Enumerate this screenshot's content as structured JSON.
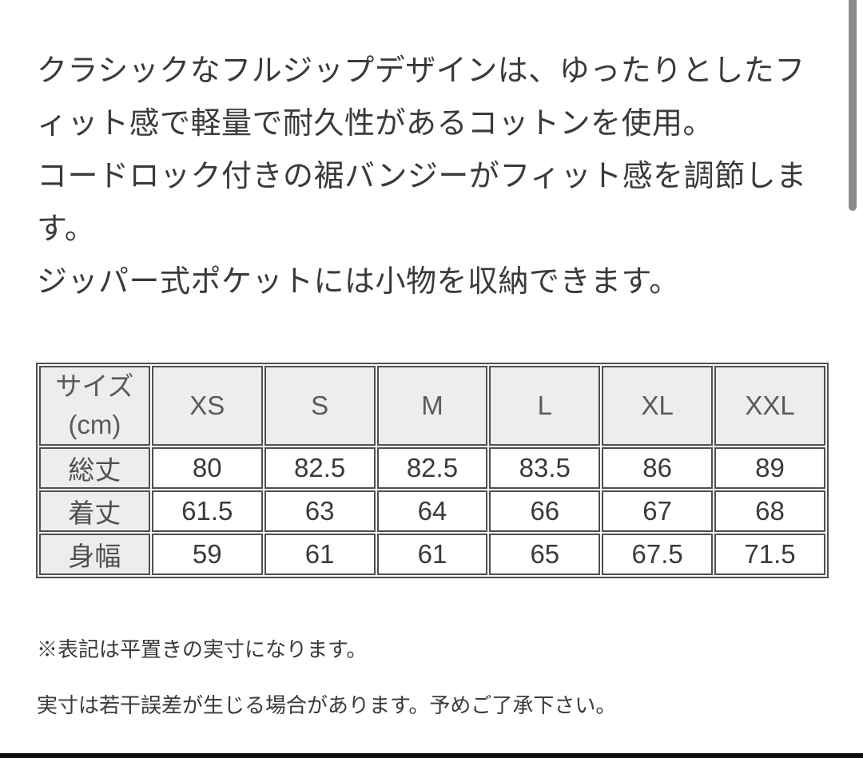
{
  "page": {
    "background": "#ffffff",
    "text_color": "#3a3a3a",
    "bottom_bar_color": "#0c0c0c",
    "scrollbar_color": "#8b8b8b"
  },
  "description": {
    "lines": [
      "クラシックなフルジップデザインは、ゆったりとしたフ",
      "ィット感で軽量で耐久性があるコットンを使用。",
      "コードロック付きの裾バンジーがフィット感を調節しま",
      "す。",
      "ジッパー式ポケットには小物を収納できます。"
    ]
  },
  "size_table": {
    "colors": {
      "border": "#4f4f4f",
      "header_bg": "#ededed",
      "cell_bg": "#ffffff",
      "header_text": "#5a5a5a",
      "value_text": "#3a3a3a"
    },
    "header": {
      "size_label_top": "サイズ",
      "size_label_bottom": "(cm)",
      "columns": [
        "XS",
        "S",
        "M",
        "L",
        "XL",
        "XXL"
      ]
    },
    "rows": [
      {
        "label": "総丈",
        "values": [
          "80",
          "82.5",
          "82.5",
          "83.5",
          "86",
          "89"
        ]
      },
      {
        "label": "着丈",
        "values": [
          "61.5",
          "63",
          "64",
          "66",
          "67",
          "68"
        ]
      },
      {
        "label": "身幅",
        "values": [
          "59",
          "61",
          "61",
          "65",
          "67.5",
          "71.5"
        ]
      }
    ]
  },
  "notes": {
    "lines": [
      "※表記は平置きの実寸になります。",
      "実寸は若干誤差が生じる場合があります。予めご了承下さい。"
    ]
  }
}
